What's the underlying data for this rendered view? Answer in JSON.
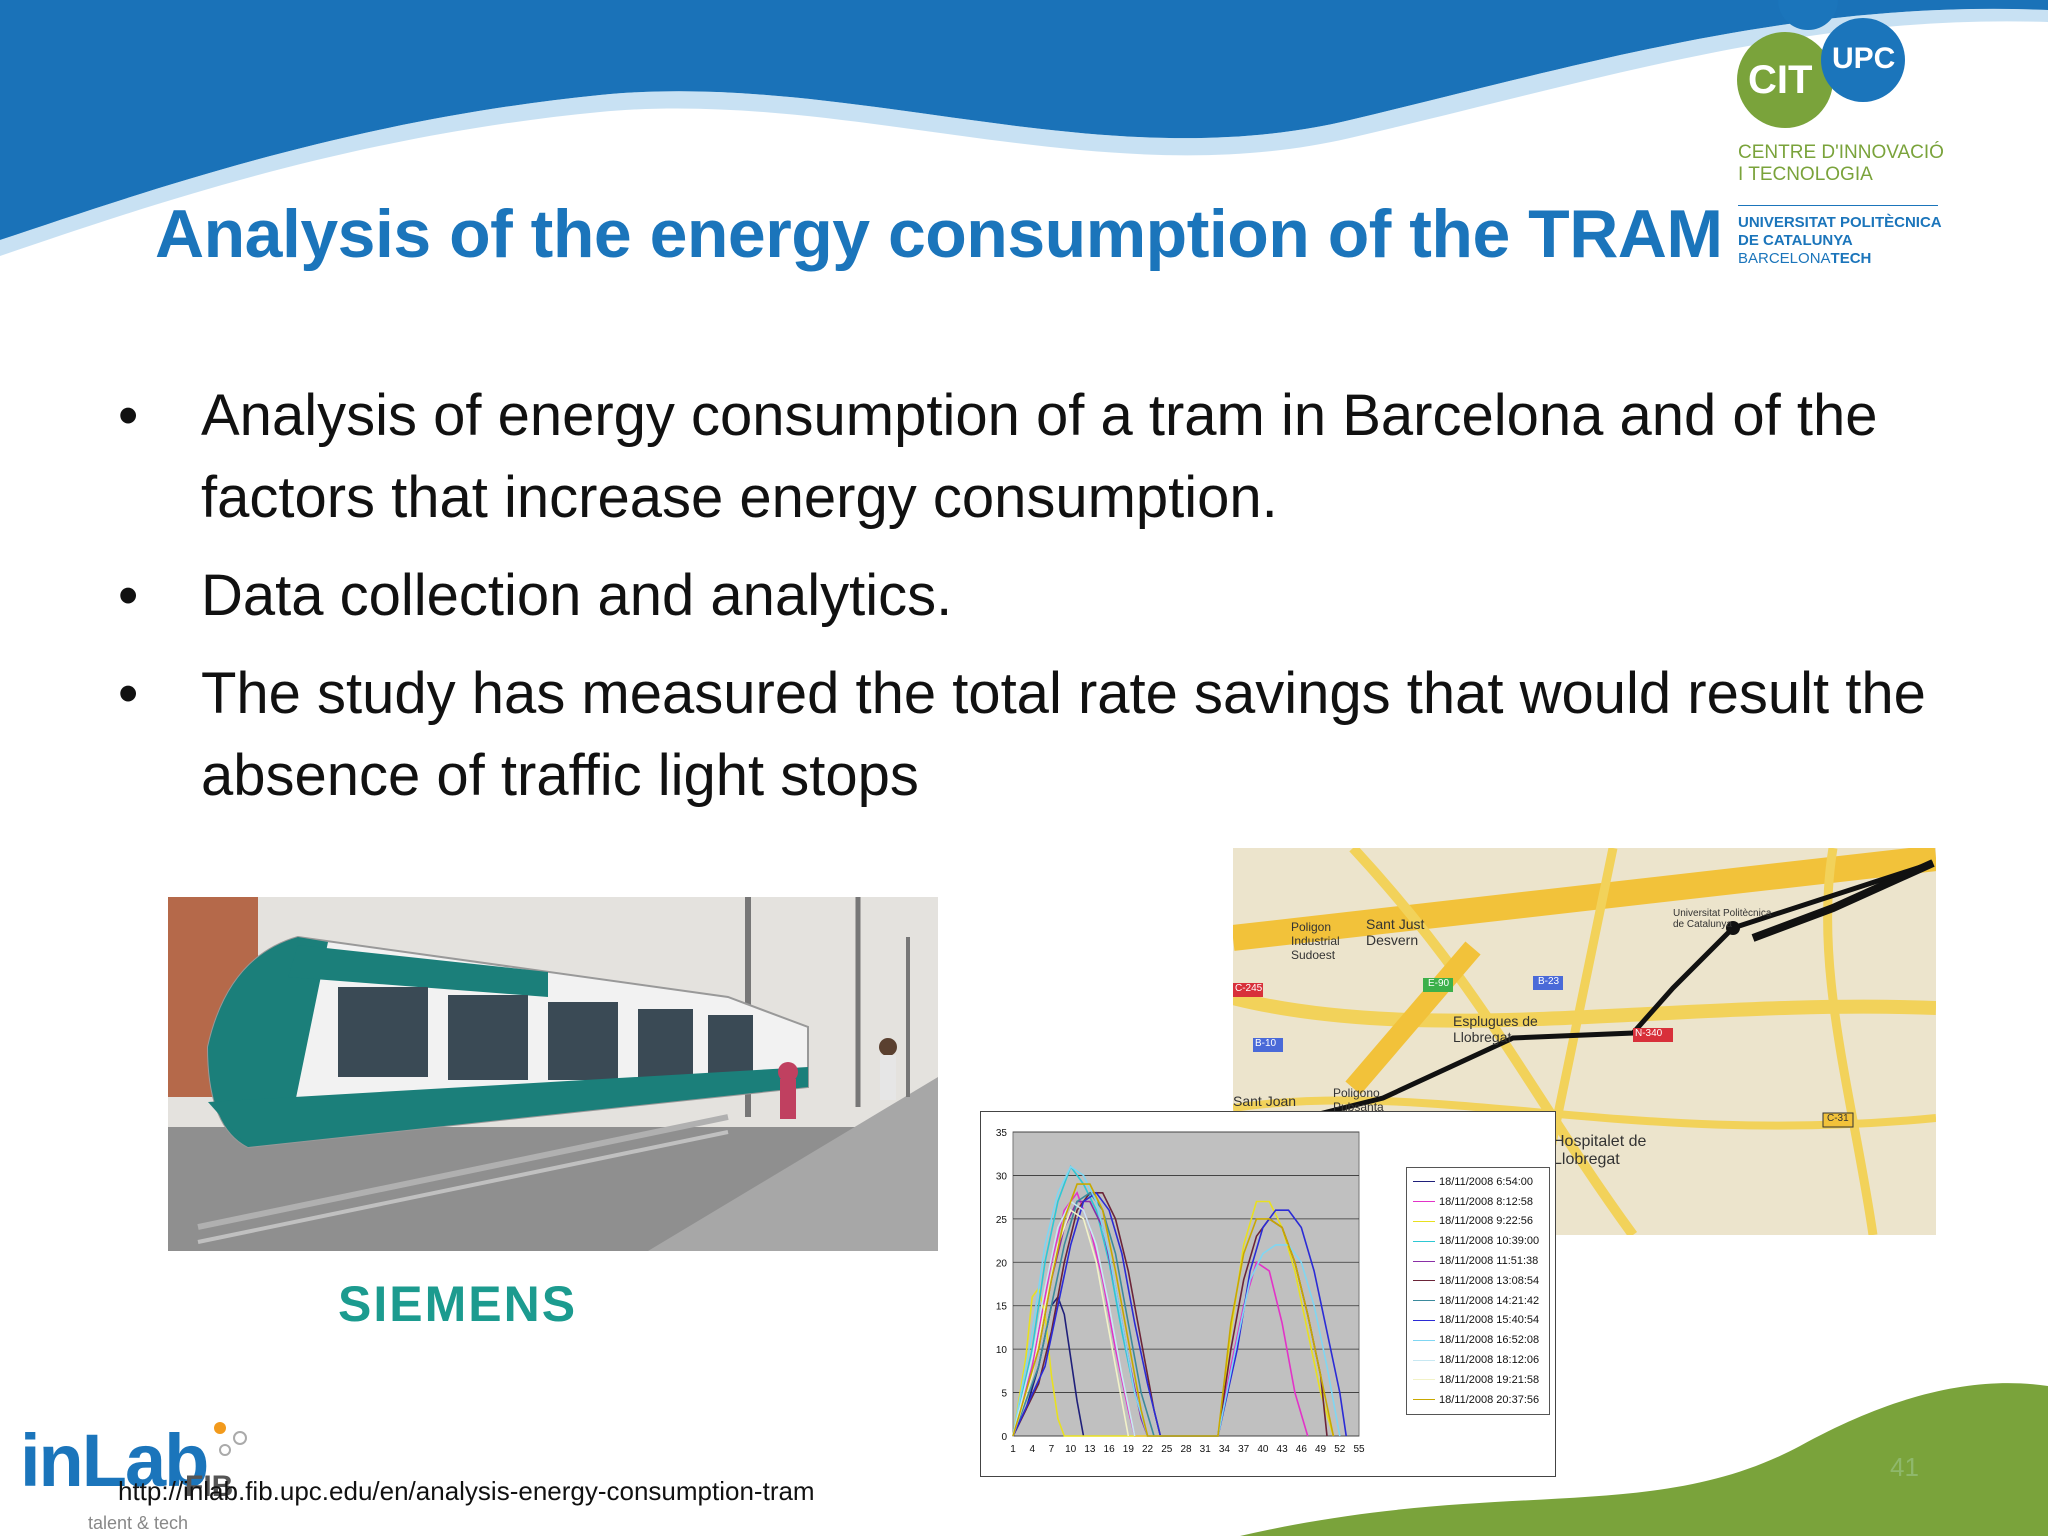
{
  "slide": {
    "title": "Analysis of the energy consumption of the TRAM",
    "bullets": [
      "Analysis of energy consumption of a tram in Barcelona and of the factors that increase energy consumption.",
      "Data collection and analytics.",
      "The study has measured the total rate savings that would result the absence of traffic light stops"
    ],
    "bullet_symbol": "•",
    "url": "http://inlab.fib.upc.edu/en/analysis-energy-consumption-tram",
    "page_number": "41"
  },
  "logos": {
    "cit": "CIT",
    "upc": "UPC",
    "cit_name_line1": "CENTRE D'INNOVACIÓ",
    "cit_name_line2": "I TECNOLOGIA",
    "upc_name_line1": "UNIVERSITAT POLITÈCNICA",
    "upc_name_line2": "DE CATALUNYA",
    "upc_name_line3_a": "BARCELONA",
    "upc_name_line3_b": "TECH",
    "siemens": "SIEMENS",
    "inlab": "inLab",
    "inlab_fib": "FIB",
    "inlab_tagline": "talent & tech"
  },
  "map": {
    "labels": [
      "Poligon Industrial Sudoest",
      "Sant Just Desvern",
      "Esplugues de Llobregat",
      "Universitat Politècnica de Catalunya",
      "Sant Joan",
      "Poligono Pubsanta",
      "Hospitalet de Llobregat",
      "B-23",
      "N-340",
      "C-31",
      "B-10",
      "C-245",
      "E-90"
    ]
  },
  "colors": {
    "brand_blue": "#1b75bb",
    "brand_green": "#7aa33b",
    "siemens_teal": "#1c9b8f",
    "chart_plot_bg": "#c0c0c0"
  },
  "chart_data": {
    "type": "line",
    "title": "",
    "xlabel": "",
    "ylabel": "",
    "ylim": [
      0,
      35
    ],
    "yticks": [
      0,
      5,
      10,
      15,
      20,
      25,
      30,
      35
    ],
    "xticks": [
      1,
      4,
      7,
      10,
      13,
      16,
      19,
      22,
      25,
      28,
      31,
      34,
      37,
      40,
      43,
      46,
      49,
      52,
      55
    ],
    "xlim": [
      1,
      55
    ],
    "grid": true,
    "legend_position": "right",
    "series": [
      {
        "name": "18/11/2008 6:54:00",
        "color": "#1f1f7a",
        "points": [
          [
            1,
            0
          ],
          [
            3,
            3
          ],
          [
            5,
            8
          ],
          [
            7,
            15
          ],
          [
            8,
            16
          ],
          [
            9,
            14
          ],
          [
            10,
            9
          ],
          [
            11,
            4
          ],
          [
            12,
            0
          ]
        ]
      },
      {
        "name": "18/11/2008 8:12:58",
        "color": "#e233c8",
        "points": [
          [
            1,
            0
          ],
          [
            4,
            8
          ],
          [
            7,
            20
          ],
          [
            9,
            26
          ],
          [
            11,
            28
          ],
          [
            13,
            24
          ],
          [
            15,
            18
          ],
          [
            17,
            10
          ],
          [
            19,
            3
          ],
          [
            20,
            0
          ],
          [
            33,
            0
          ],
          [
            35,
            8
          ],
          [
            37,
            15
          ],
          [
            39,
            20
          ],
          [
            41,
            19
          ],
          [
            43,
            13
          ],
          [
            45,
            5
          ],
          [
            47,
            0
          ]
        ]
      },
      {
        "name": "18/11/2008 9:22:56",
        "color": "#e8e020",
        "points": [
          [
            1,
            0
          ],
          [
            3,
            9
          ],
          [
            4,
            16
          ],
          [
            5,
            17
          ],
          [
            6,
            14
          ],
          [
            7,
            7
          ],
          [
            8,
            2
          ],
          [
            9,
            0
          ],
          [
            33,
            0
          ],
          [
            35,
            12
          ],
          [
            37,
            22
          ],
          [
            39,
            27
          ],
          [
            41,
            27
          ],
          [
            43,
            24
          ],
          [
            45,
            19
          ],
          [
            47,
            12
          ],
          [
            49,
            5
          ],
          [
            51,
            0
          ]
        ]
      },
      {
        "name": "18/11/2008 10:39:00",
        "color": "#2ec8d4",
        "points": [
          [
            1,
            0
          ],
          [
            4,
            10
          ],
          [
            6,
            20
          ],
          [
            8,
            27
          ],
          [
            10,
            31
          ],
          [
            12,
            29
          ],
          [
            14,
            26
          ],
          [
            16,
            20
          ],
          [
            18,
            12
          ],
          [
            20,
            5
          ],
          [
            22,
            0
          ]
        ]
      },
      {
        "name": "18/11/2008 11:51:38",
        "color": "#8a2fa6",
        "points": [
          [
            1,
            0
          ],
          [
            5,
            10
          ],
          [
            7,
            18
          ],
          [
            9,
            24
          ],
          [
            11,
            27
          ],
          [
            13,
            27
          ],
          [
            15,
            24
          ],
          [
            17,
            17
          ],
          [
            19,
            9
          ],
          [
            21,
            2
          ],
          [
            22,
            0
          ]
        ]
      },
      {
        "name": "18/11/2008 13:08:54",
        "color": "#6b2438",
        "points": [
          [
            1,
            0
          ],
          [
            5,
            6
          ],
          [
            7,
            12
          ],
          [
            9,
            20
          ],
          [
            11,
            26
          ],
          [
            13,
            28
          ],
          [
            15,
            28
          ],
          [
            17,
            25
          ],
          [
            19,
            19
          ],
          [
            21,
            11
          ],
          [
            23,
            3
          ],
          [
            24,
            0
          ],
          [
            33,
            0
          ],
          [
            35,
            10
          ],
          [
            37,
            18
          ],
          [
            39,
            23
          ],
          [
            41,
            25
          ],
          [
            43,
            24
          ],
          [
            45,
            20
          ],
          [
            47,
            14
          ],
          [
            49,
            7
          ],
          [
            50,
            0
          ]
        ]
      },
      {
        "name": "18/11/2008 14:21:42",
        "color": "#3b8a9c",
        "points": [
          [
            1,
            0
          ],
          [
            5,
            8
          ],
          [
            7,
            15
          ],
          [
            9,
            22
          ],
          [
            11,
            27
          ],
          [
            13,
            28
          ],
          [
            15,
            26
          ],
          [
            17,
            21
          ],
          [
            19,
            13
          ],
          [
            21,
            5
          ],
          [
            23,
            0
          ]
        ]
      },
      {
        "name": "18/11/2008 15:40:54",
        "color": "#2b2bd6",
        "points": [
          [
            1,
            0
          ],
          [
            6,
            8
          ],
          [
            8,
            15
          ],
          [
            10,
            22
          ],
          [
            12,
            27
          ],
          [
            14,
            28
          ],
          [
            16,
            26
          ],
          [
            18,
            21
          ],
          [
            20,
            13
          ],
          [
            22,
            6
          ],
          [
            24,
            0
          ],
          [
            33,
            0
          ],
          [
            36,
            10
          ],
          [
            38,
            19
          ],
          [
            40,
            24
          ],
          [
            42,
            26
          ],
          [
            44,
            26
          ],
          [
            46,
            24
          ],
          [
            48,
            19
          ],
          [
            50,
            12
          ],
          [
            52,
            5
          ],
          [
            53,
            0
          ]
        ]
      },
      {
        "name": "18/11/2008 16:52:08",
        "color": "#7fd6f2",
        "points": [
          [
            1,
            0
          ],
          [
            4,
            12
          ],
          [
            6,
            22
          ],
          [
            8,
            28
          ],
          [
            10,
            31
          ],
          [
            12,
            30
          ],
          [
            14,
            27
          ],
          [
            16,
            21
          ],
          [
            18,
            13
          ],
          [
            20,
            5
          ],
          [
            22,
            0
          ],
          [
            33,
            0
          ],
          [
            36,
            11
          ],
          [
            38,
            18
          ],
          [
            40,
            21
          ],
          [
            42,
            22
          ],
          [
            44,
            22
          ],
          [
            46,
            20
          ],
          [
            48,
            15
          ],
          [
            50,
            8
          ],
          [
            52,
            0
          ]
        ]
      },
      {
        "name": "18/11/2008 18:12:06",
        "color": "#c8e8f2",
        "points": [
          [
            1,
            0
          ],
          [
            4,
            9
          ],
          [
            6,
            17
          ],
          [
            8,
            24
          ],
          [
            10,
            27
          ],
          [
            12,
            26
          ],
          [
            14,
            22
          ],
          [
            16,
            15
          ],
          [
            18,
            7
          ],
          [
            20,
            0
          ]
        ]
      },
      {
        "name": "18/11/2008 19:21:58",
        "color": "#f2f2c8",
        "points": [
          [
            1,
            0
          ],
          [
            4,
            7
          ],
          [
            6,
            15
          ],
          [
            8,
            22
          ],
          [
            10,
            26
          ],
          [
            12,
            25
          ],
          [
            14,
            20
          ],
          [
            16,
            12
          ],
          [
            18,
            4
          ],
          [
            19,
            0
          ]
        ]
      },
      {
        "name": "18/11/2008 20:37:56",
        "color": "#c8a800",
        "points": [
          [
            1,
            0
          ],
          [
            5,
            10
          ],
          [
            7,
            18
          ],
          [
            9,
            25
          ],
          [
            11,
            29
          ],
          [
            13,
            29
          ],
          [
            15,
            26
          ],
          [
            17,
            19
          ],
          [
            19,
            11
          ],
          [
            21,
            3
          ],
          [
            22,
            0
          ],
          [
            33,
            0
          ],
          [
            35,
            13
          ],
          [
            37,
            21
          ],
          [
            39,
            25
          ],
          [
            41,
            25
          ],
          [
            43,
            24
          ],
          [
            45,
            20
          ],
          [
            47,
            14
          ],
          [
            49,
            7
          ],
          [
            51,
            0
          ]
        ]
      }
    ]
  }
}
